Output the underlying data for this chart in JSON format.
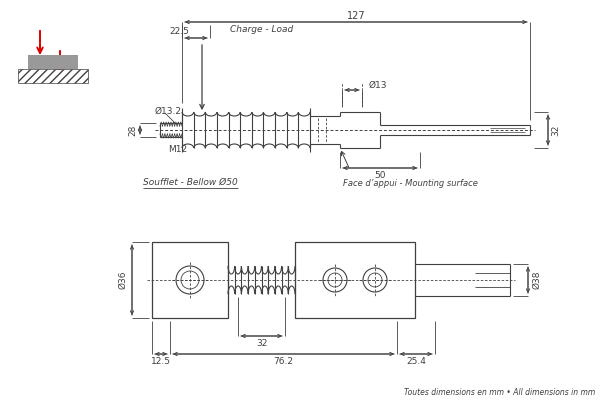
{
  "bg_color": "#ffffff",
  "line_color": "#404040",
  "dim_color": "#404040",
  "red_color": "#dd0000",
  "fig_width": 6.07,
  "fig_height": 4.03,
  "dpi": 100,
  "title_text": "Toutes dimensions en mm • All dimensions in mm",
  "label_charge": "Charge - Load",
  "label_bellow": "Soufflet - Bellow Ø50",
  "label_face": "Face d’appui - Mounting surface",
  "dim_127": "127",
  "dim_22_5": "22.5",
  "dim_13_2": "Ø13.2",
  "dim_28": "28",
  "dim_m12": "M12",
  "dim_13": "Ø13",
  "dim_32_top": "32",
  "dim_50": "50",
  "dim_36": "Ø36",
  "dim_38": "Ø38",
  "dim_32_bot": "32",
  "dim_12_5": "12.5",
  "dim_76_2": "76.2",
  "dim_25_4": "25.4"
}
